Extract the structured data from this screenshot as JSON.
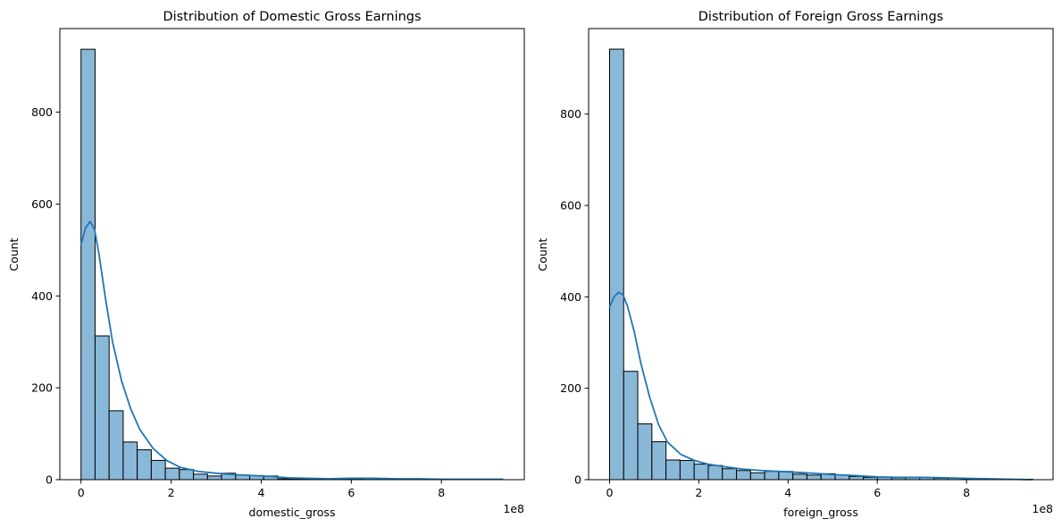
{
  "chart_data": [
    {
      "type": "bar",
      "title": "Distribution of Domestic Gross Earnings",
      "xlabel": "domestic_gross",
      "ylabel": "Count",
      "x_offset_label": "1e8",
      "xlim": [
        -0.47,
        9.84
      ],
      "ylim": [
        0,
        982
      ],
      "x_ticks": [
        0,
        2,
        4,
        6,
        8
      ],
      "y_ticks": [
        0,
        200,
        400,
        600,
        800
      ],
      "bin_edges": [
        0.0,
        0.312,
        0.624,
        0.936,
        1.248,
        1.56,
        1.872,
        2.184,
        2.496,
        2.808,
        3.12,
        3.432,
        3.744,
        4.056,
        4.368,
        4.68,
        4.992,
        5.304,
        5.616,
        5.928,
        6.24,
        6.552,
        6.864,
        7.176,
        7.488,
        7.8,
        8.112,
        8.424,
        8.736,
        9.048,
        9.36
      ],
      "values": [
        937,
        313,
        150,
        82,
        65,
        42,
        25,
        22,
        12,
        8,
        14,
        10,
        9,
        8,
        2,
        2,
        2,
        1,
        1,
        1,
        3,
        2,
        1,
        1,
        1,
        1,
        1,
        1,
        1,
        1
      ],
      "kde": {
        "x": [
          0.0,
          0.1,
          0.2,
          0.3,
          0.4,
          0.55,
          0.7,
          0.9,
          1.1,
          1.3,
          1.6,
          1.9,
          2.2,
          2.6,
          3.0,
          3.4,
          3.8,
          4.2,
          4.6,
          5.0,
          5.5,
          6.0,
          6.5,
          7.0,
          7.5,
          8.0,
          8.5,
          9.0,
          9.36
        ],
        "y": [
          512,
          548,
          562,
          545,
          490,
          390,
          300,
          215,
          155,
          110,
          68,
          42,
          27,
          18,
          14,
          11,
          9,
          7,
          4,
          3,
          2,
          3,
          3,
          2,
          2,
          1,
          1,
          1,
          1
        ]
      },
      "colors": {
        "bar_fill": "#8ab8d8",
        "bar_edge": "#000000",
        "kde_line": "#1f77b4"
      }
    },
    {
      "type": "bar",
      "title": "Distribution of Foreign Gross Earnings",
      "xlabel": "foreign_gross",
      "ylabel": "Count",
      "x_offset_label": "1e8",
      "xlim": [
        -0.47,
        9.94
      ],
      "ylim": [
        0,
        987
      ],
      "x_ticks": [
        0,
        2,
        4,
        6,
        8
      ],
      "y_ticks": [
        0,
        200,
        400,
        600,
        800
      ],
      "bin_edges": [
        0.0,
        0.316,
        0.632,
        0.948,
        1.264,
        1.58,
        1.896,
        2.212,
        2.528,
        2.844,
        3.16,
        3.476,
        3.792,
        4.108,
        4.424,
        4.74,
        5.056,
        5.372,
        5.688,
        6.004,
        6.32,
        6.636,
        6.952,
        7.268,
        7.584,
        7.9,
        8.216,
        8.532,
        8.848,
        9.164,
        9.48
      ],
      "values": [
        942,
        237,
        122,
        83,
        43,
        42,
        34,
        31,
        24,
        20,
        15,
        18,
        18,
        12,
        10,
        13,
        10,
        7,
        5,
        5,
        4,
        5,
        5,
        3,
        3,
        2,
        2,
        2,
        1,
        1
      ],
      "kde": {
        "x": [
          0.0,
          0.1,
          0.2,
          0.3,
          0.4,
          0.55,
          0.7,
          0.9,
          1.1,
          1.3,
          1.6,
          1.9,
          2.2,
          2.6,
          3.0,
          3.4,
          3.8,
          4.2,
          4.6,
          5.0,
          5.5,
          6.0,
          6.5,
          7.0,
          7.5,
          8.0,
          8.5,
          9.0,
          9.48
        ],
        "y": [
          378,
          400,
          410,
          405,
          380,
          325,
          255,
          180,
          120,
          82,
          55,
          42,
          34,
          28,
          23,
          20,
          18,
          16,
          14,
          11,
          9,
          6,
          5,
          5,
          4,
          3,
          2,
          1,
          0
        ]
      },
      "colors": {
        "bar_fill": "#8ab8d8",
        "bar_edge": "#000000",
        "kde_line": "#1f77b4"
      }
    }
  ]
}
